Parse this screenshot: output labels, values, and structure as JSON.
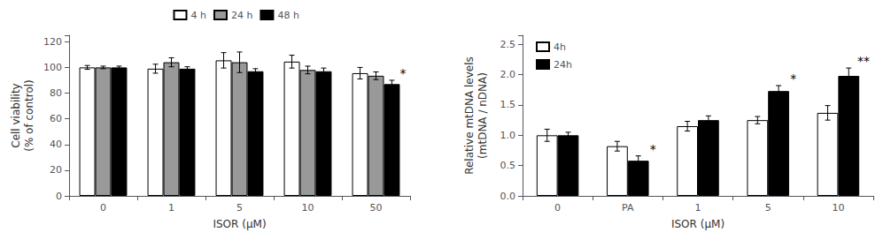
{
  "chart_data": [
    {
      "type": "bar",
      "categories": [
        "0",
        "1",
        "5",
        "10",
        "50"
      ],
      "series": [
        {
          "name": "4 h",
          "color": "white",
          "values": [
            100.0,
            99.0,
            105.5,
            104.5,
            95.5
          ],
          "errors": [
            1.5,
            3.5,
            6.0,
            5.0,
            4.5
          ]
        },
        {
          "name": "24 h",
          "color": "#999999",
          "values": [
            100.0,
            104.0,
            104.0,
            98.0,
            93.5
          ],
          "errors": [
            1.0,
            3.5,
            8.0,
            3.0,
            3.0
          ]
        },
        {
          "name": "48 h",
          "color": "black",
          "values": [
            100.0,
            99.0,
            97.0,
            97.0,
            87.0
          ],
          "errors": [
            1.0,
            1.5,
            2.0,
            2.5,
            3.0
          ]
        }
      ],
      "xlabel": "ISOR (μM)",
      "ylabel": "Cell viability\n(% of control)",
      "ylim": [
        0,
        125
      ],
      "yticks": [
        0,
        20,
        40,
        60,
        80,
        100,
        120
      ],
      "legend": "upper center",
      "annotations": [
        {
          "text": "*",
          "category": "50",
          "series": "48 h"
        }
      ]
    },
    {
      "type": "bar",
      "categories": [
        "0",
        "PA",
        "1",
        "5",
        "10"
      ],
      "series": [
        {
          "name": "4h",
          "color": "white",
          "values": [
            1.0,
            0.82,
            1.15,
            1.25,
            1.37
          ],
          "errors": [
            0.1,
            0.08,
            0.08,
            0.06,
            0.12
          ]
        },
        {
          "name": "24h",
          "color": "black",
          "values": [
            1.0,
            0.58,
            1.25,
            1.73,
            1.98
          ],
          "errors": [
            0.05,
            0.08,
            0.07,
            0.09,
            0.13
          ]
        }
      ],
      "xlabel": "ISOR (μM)",
      "ylabel": "Relative mtDNA levels\n(mtDNA / nDNA)",
      "ylim": [
        0.0,
        2.65
      ],
      "yticks": [
        {
          "value": 0,
          "label": "0.0"
        },
        {
          "value": 0.5,
          "label": "0.5"
        },
        {
          "value": 1,
          "label": "1.0"
        },
        {
          "value": 1.5,
          "label": "1.5"
        },
        {
          "value": 2,
          "label": "2.0"
        },
        {
          "value": 2.5,
          "label": "2.5"
        }
      ],
      "legend": "upper left",
      "annotations": [
        {
          "text": "*",
          "category": "PA",
          "series": "24h"
        },
        {
          "text": "*",
          "category": "5",
          "series": "24h"
        },
        {
          "text": "**",
          "category": "10",
          "series": "24h"
        }
      ]
    }
  ]
}
